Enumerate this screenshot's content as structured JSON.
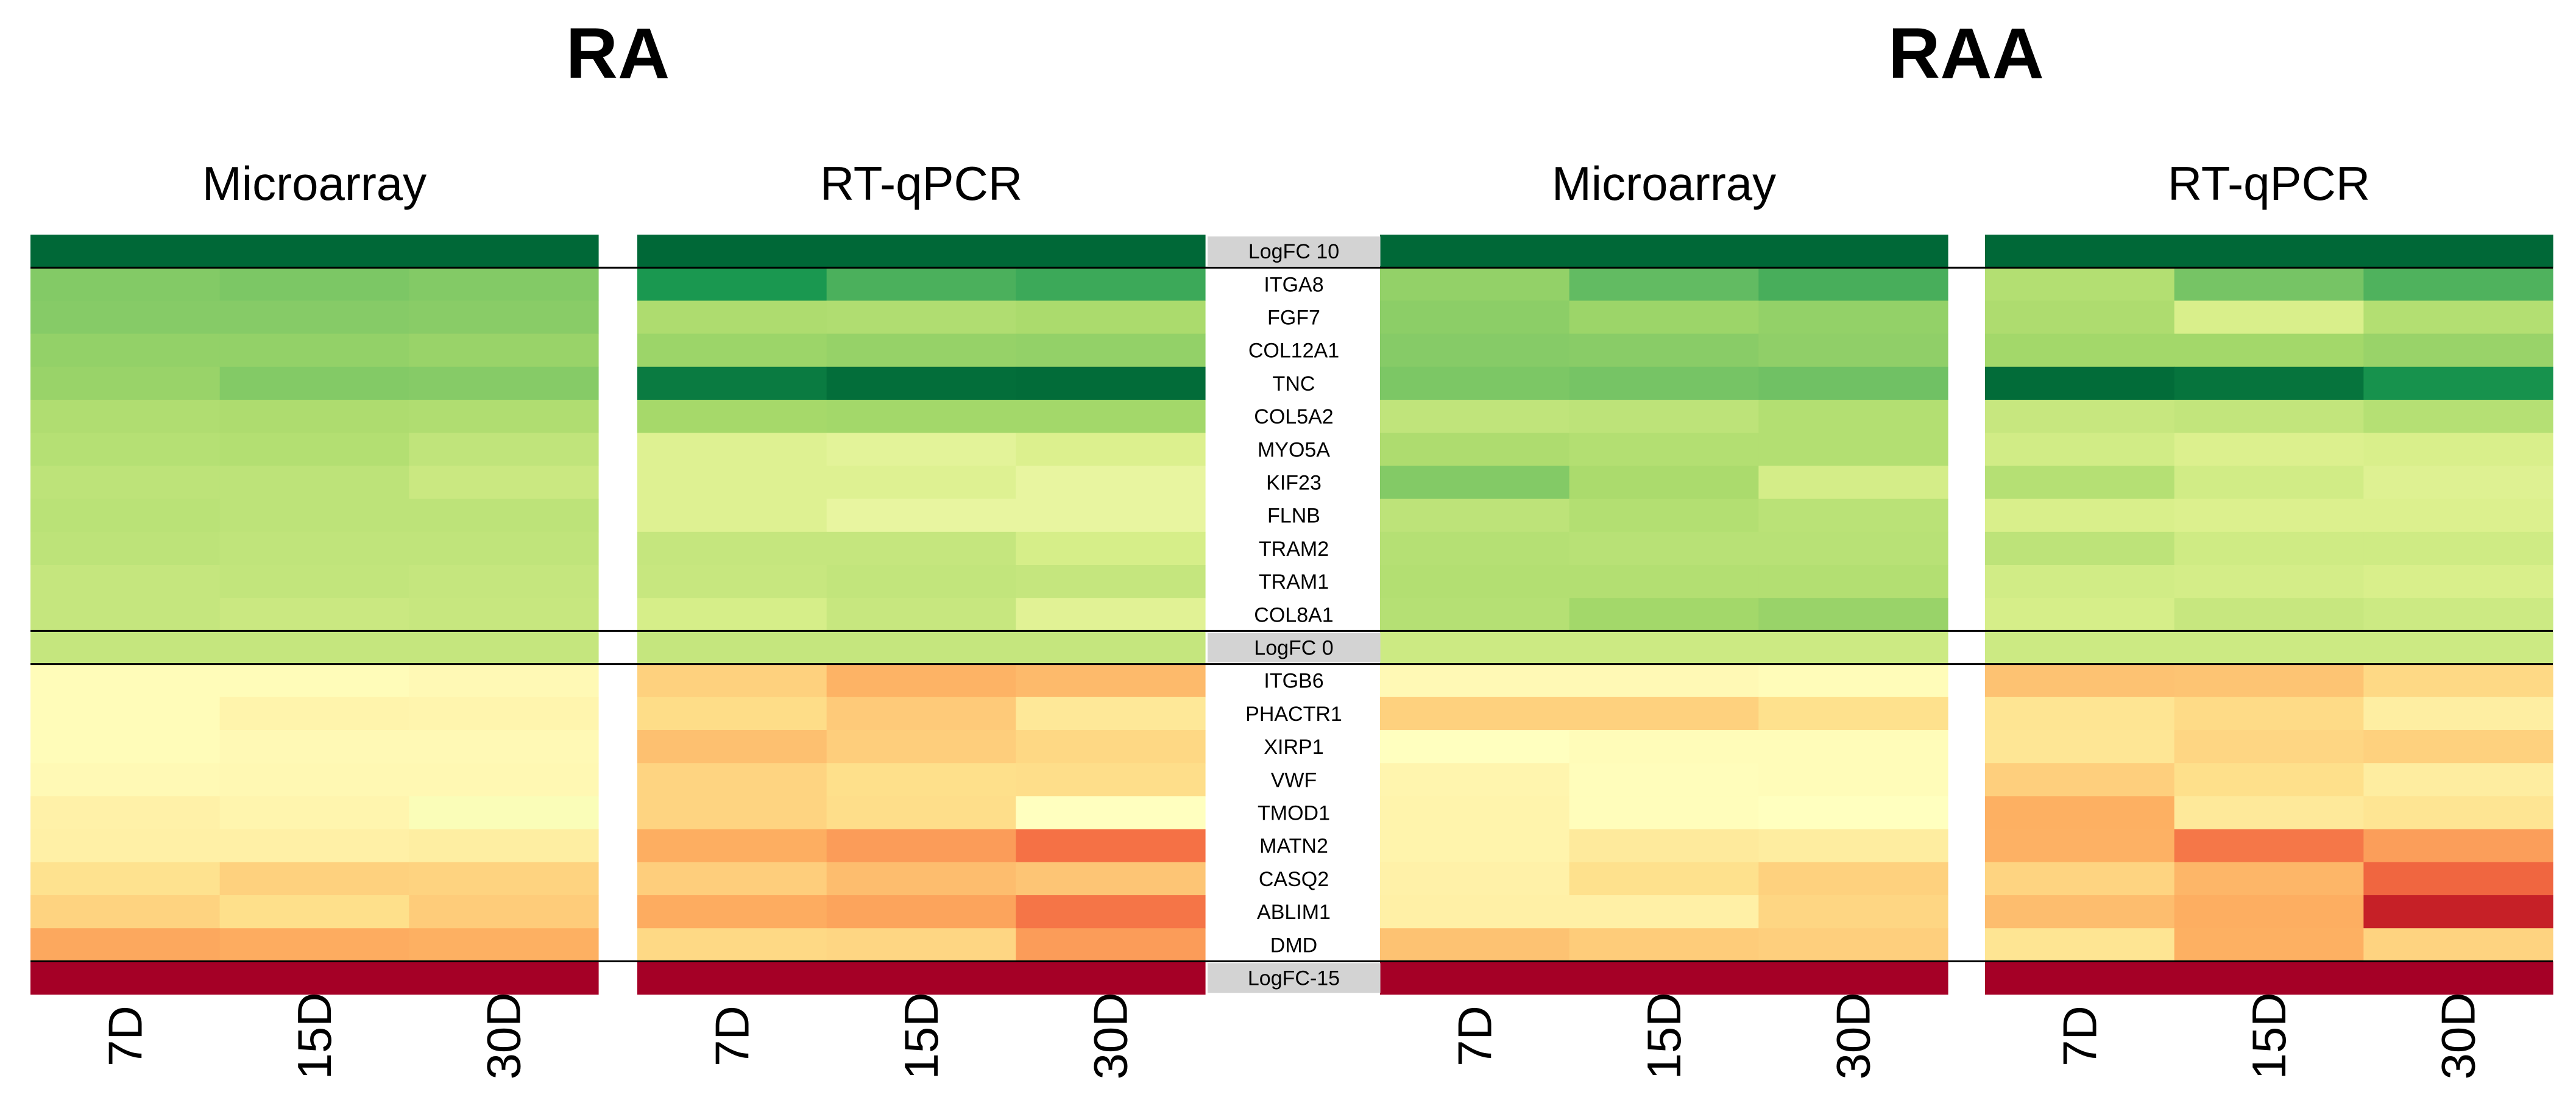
{
  "chart_data": {
    "type": "heatmap",
    "groups": [
      {
        "name": "RA",
        "panels": [
          "Microarray",
          "RT-qPCR"
        ]
      },
      {
        "name": "RAA",
        "panels": [
          "Microarray",
          "RT-qPCR"
        ]
      }
    ],
    "timepoints": [
      "7D",
      "15D",
      "30D"
    ],
    "genes_up": [
      "ITGA8",
      "FGF7",
      "COL12A1",
      "TNC",
      "COL5A2",
      "MYO5A",
      "KIF23",
      "FLNB",
      "TRAM2",
      "TRAM1",
      "COL8A1"
    ],
    "genes_down": [
      "ITGB6",
      "PHACTR1",
      "XIRP1",
      "VWF",
      "TMOD1",
      "MATN2",
      "CASQ2",
      "ABLIM1",
      "DMD"
    ],
    "scale_labels": {
      "top": "LogFC 10",
      "middle": "LogFC 0",
      "bottom": "LogFC-15"
    },
    "scale": {
      "min": -15,
      "mid": 0,
      "max": 10
    },
    "colors": {
      "max": "#006837",
      "mid": "#ffffbf",
      "min": "#a50026",
      "marker_bg": "#d3d3d3"
    },
    "panels": [
      {
        "id": "RA-Microarray",
        "up": [
          [
            4.6,
            4.8,
            4.6
          ],
          [
            4.5,
            4.5,
            4.4
          ],
          [
            4.1,
            4.1,
            3.9
          ],
          [
            3.9,
            4.6,
            4.5
          ],
          [
            3.1,
            3.2,
            3.1
          ],
          [
            2.9,
            3.0,
            2.5
          ],
          [
            2.6,
            2.6,
            2.1
          ],
          [
            2.7,
            2.6,
            2.6
          ],
          [
            2.6,
            2.5,
            2.5
          ],
          [
            2.3,
            2.4,
            2.3
          ],
          [
            2.3,
            2.1,
            2.2
          ]
        ],
        "zero": 2.3,
        "down": [
          [
            -0.3,
            -0.3,
            -0.5
          ],
          [
            -0.3,
            -1.0,
            -0.9
          ],
          [
            -0.3,
            -0.5,
            -0.5
          ],
          [
            -0.5,
            -0.6,
            -0.6
          ],
          [
            -1.2,
            -0.9,
            0.2
          ],
          [
            -1.3,
            -1.3,
            -1.5
          ],
          [
            -2.5,
            -3.6,
            -3.5
          ],
          [
            -3.5,
            -2.7,
            -3.9
          ],
          [
            -6.0,
            -5.8,
            -5.6
          ]
        ]
      },
      {
        "id": "RA-RTqPCR",
        "up": [
          [
            7.5,
            6.2,
            6.6
          ],
          [
            3.2,
            3.1,
            3.3
          ],
          [
            3.8,
            4.0,
            4.1
          ],
          [
            9.0,
            9.7,
            9.8
          ],
          [
            3.5,
            3.6,
            3.6
          ],
          [
            1.3,
            1.1,
            1.4
          ],
          [
            1.3,
            1.3,
            0.9
          ],
          [
            1.3,
            0.9,
            0.9
          ],
          [
            2.3,
            2.3,
            1.6
          ],
          [
            2.2,
            2.4,
            2.3
          ],
          [
            1.6,
            2.2,
            1.2
          ]
        ],
        "zero": 2.3,
        "down": [
          [
            -3.6,
            -5.4,
            -5.0
          ],
          [
            -2.9,
            -4.0,
            -2.0
          ],
          [
            -4.6,
            -3.8,
            -3.2
          ],
          [
            -3.4,
            -2.7,
            -2.8
          ],
          [
            -3.4,
            -2.8,
            0.0
          ],
          [
            -5.7,
            -6.6,
            -8.8
          ],
          [
            -3.8,
            -4.8,
            -4.3
          ],
          [
            -5.8,
            -6.2,
            -8.6
          ],
          [
            -3.1,
            -3.3,
            -6.6
          ]
        ]
      },
      {
        "id": "RAA-Microarray",
        "up": [
          [
            4.1,
            5.6,
            6.3
          ],
          [
            4.3,
            3.8,
            4.1
          ],
          [
            4.5,
            4.4,
            4.2
          ],
          [
            4.8,
            5.0,
            5.2
          ],
          [
            2.5,
            2.6,
            3.0
          ],
          [
            3.2,
            3.0,
            3.0
          ],
          [
            4.6,
            3.3,
            1.7
          ],
          [
            2.6,
            3.0,
            2.7
          ],
          [
            2.9,
            2.8,
            2.8
          ],
          [
            3.0,
            3.0,
            3.0
          ],
          [
            2.9,
            3.6,
            3.9
          ]
        ],
        "zero": 2.0,
        "down": [
          [
            -0.5,
            -0.5,
            -0.3
          ],
          [
            -3.6,
            -3.6,
            -2.6
          ],
          [
            0.0,
            -0.3,
            -0.3
          ],
          [
            -0.9,
            -0.2,
            -0.3
          ],
          [
            -1.0,
            -0.2,
            0.0
          ],
          [
            -1.0,
            -1.8,
            -1.6
          ],
          [
            -1.2,
            -2.6,
            -3.6
          ],
          [
            -1.3,
            -1.3,
            -3.3
          ],
          [
            -4.5,
            -3.9,
            -3.7
          ]
        ]
      },
      {
        "id": "RAA-RTqPCR",
        "up": [
          [
            3.0,
            5.0,
            6.1
          ],
          [
            3.2,
            1.5,
            3.0
          ],
          [
            3.6,
            3.6,
            3.9
          ],
          [
            9.8,
            9.4,
            7.8
          ],
          [
            2.2,
            2.4,
            2.9
          ],
          [
            1.8,
            1.4,
            1.5
          ],
          [
            2.9,
            1.8,
            1.3
          ],
          [
            1.5,
            1.4,
            1.4
          ],
          [
            2.6,
            1.9,
            1.9
          ],
          [
            1.8,
            1.7,
            1.5
          ],
          [
            1.6,
            2.2,
            2.0
          ]
        ],
        "zero": 2.0,
        "down": [
          [
            -4.5,
            -4.4,
            -3.1
          ],
          [
            -2.3,
            -3.0,
            -1.5
          ],
          [
            -2.2,
            -3.3,
            -3.6
          ],
          [
            -3.7,
            -2.7,
            -1.6
          ],
          [
            -5.6,
            -1.9,
            -2.3
          ],
          [
            -5.5,
            -8.5,
            -6.5
          ],
          [
            -3.4,
            -5.2,
            -9.4
          ],
          [
            -4.8,
            -5.7,
            -13.2
          ],
          [
            -2.3,
            -5.6,
            -3.5
          ]
        ]
      }
    ]
  }
}
